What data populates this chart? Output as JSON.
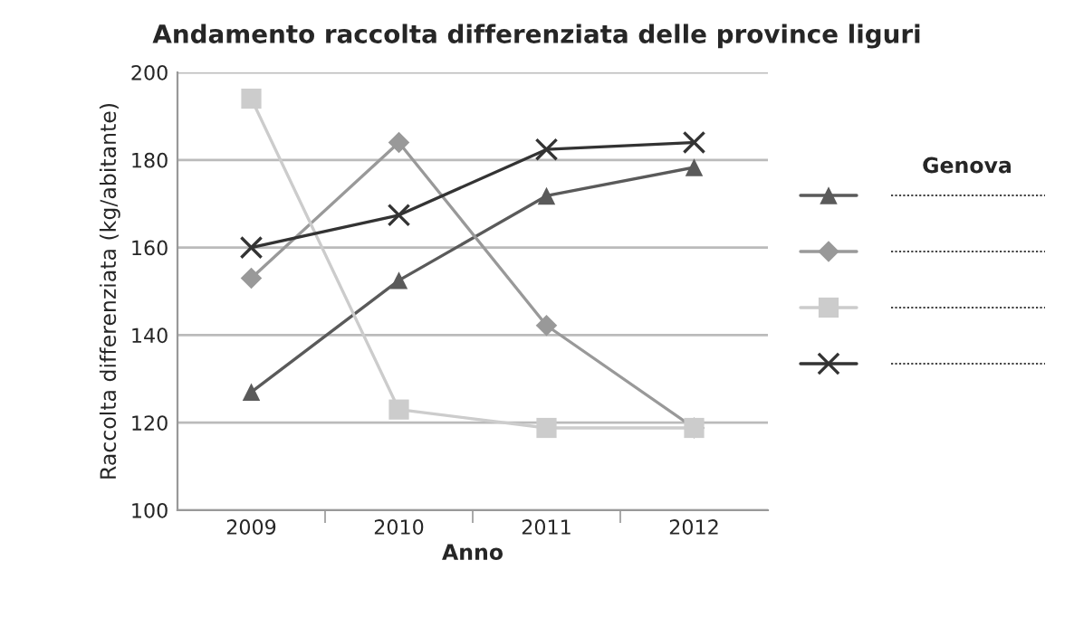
{
  "chart_data": {
    "type": "line",
    "title": "Andamento raccolta differenziata delle province liguri",
    "xlabel": "Anno",
    "ylabel": "Raccolta differenziata (kg/abitante)",
    "categories": [
      "2009",
      "2010",
      "2011",
      "2012"
    ],
    "series": [
      {
        "name": "Genova",
        "color": "#5a5a5a",
        "marker": "triangle",
        "values": [
          127,
          152.5,
          171.8,
          178.3
        ]
      },
      {
        "color": "#999999",
        "marker": "diamond",
        "values": [
          153,
          184,
          142.2,
          118.8
        ]
      },
      {
        "color": "#cccccc",
        "marker": "square",
        "values": [
          194,
          123,
          118.8,
          118.8
        ]
      },
      {
        "color": "#333333",
        "marker": "cross",
        "values": [
          160,
          167.4,
          182.4,
          184
        ]
      }
    ],
    "ylim": [
      100,
      200
    ],
    "yticks": [
      100,
      120,
      140,
      160,
      180,
      200
    ],
    "grid": "y",
    "legend": "right"
  }
}
